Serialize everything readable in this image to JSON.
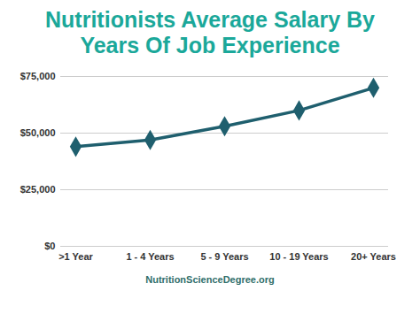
{
  "chart_data": {
    "type": "line",
    "title": "Nutritionists Average Salary By Years Of Job Experience",
    "caption": "NutritionScienceDegree.org",
    "categories": [
      ">1 Year",
      "1 - 4 Years",
      "5 - 9 Years",
      "10 - 19 Years",
      "20+ Years"
    ],
    "values": [
      44000,
      47000,
      53000,
      60000,
      70000
    ],
    "color": "#1f5f6e",
    "marker": "diamond",
    "ylim": [
      0,
      75000
    ],
    "yticks": [
      {
        "value": 0,
        "label": "$0"
      },
      {
        "value": 25000,
        "label": "$25,000"
      },
      {
        "value": 50000,
        "label": "$50,000"
      },
      {
        "value": 75000,
        "label": "$75,000"
      }
    ],
    "grid": true
  }
}
